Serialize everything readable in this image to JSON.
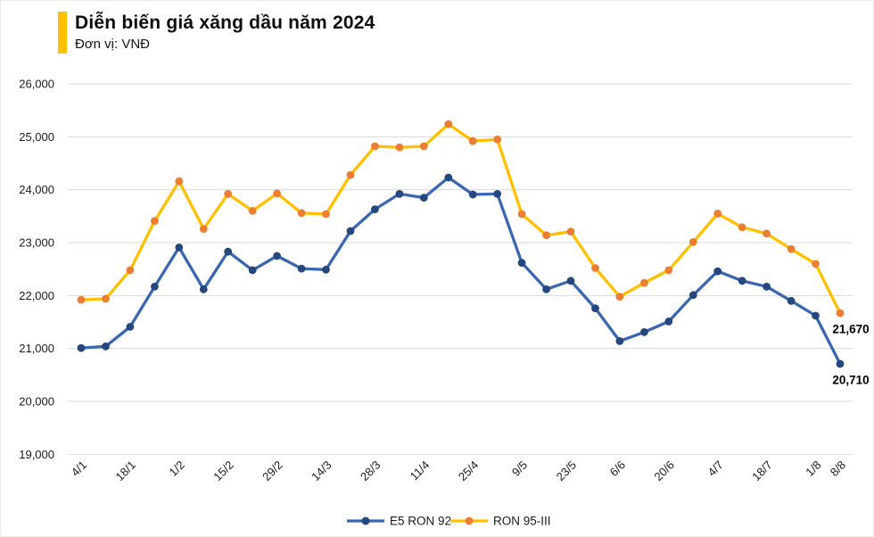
{
  "header": {
    "title": "Diễn biến giá xăng dầu năm 2024",
    "subtitle": "Đơn vị: VNĐ",
    "accent_color": "#FFC000"
  },
  "chart_data": {
    "type": "line",
    "title": "Diễn biến giá xăng dầu năm 2024",
    "unit": "VNĐ",
    "x": [
      "4/1",
      "11/1",
      "18/1",
      "25/1",
      "1/2",
      "8/2",
      "15/2",
      "22/2",
      "29/2",
      "7/3",
      "14/3",
      "21/3",
      "28/3",
      "4/4",
      "11/4",
      "17/4",
      "25/4",
      "2/5",
      "9/5",
      "16/5",
      "23/5",
      "30/5",
      "6/6",
      "13/6",
      "20/6",
      "27/6",
      "4/7",
      "11/7",
      "18/7",
      "25/7",
      "1/8",
      "8/8"
    ],
    "x_tick_labels": [
      "4/1",
      "",
      "18/1",
      "",
      "1/2",
      "",
      "15/2",
      "",
      "29/2",
      "",
      "14/3",
      "",
      "28/3",
      "",
      "11/4",
      "",
      "25/4",
      "",
      "9/5",
      "",
      "23/5",
      "",
      "6/6",
      "",
      "20/6",
      "",
      "4/7",
      "",
      "18/7",
      "",
      "1/8",
      "8/8"
    ],
    "y_axis": {
      "min": 19000,
      "max": 26000,
      "step": 1000
    },
    "grid": true,
    "legend_position": "bottom",
    "colors": {
      "grid": "#D9D9D9",
      "axis_text": "#1a1a1a",
      "label_text": "#000000"
    },
    "series": [
      {
        "name": "E5 RON 92",
        "line_color": "#3A67B1",
        "marker_color": "#24477E",
        "end_label": "20,710",
        "values": [
          21010,
          21040,
          21410,
          22170,
          22910,
          22120,
          22830,
          22480,
          22750,
          22510,
          22490,
          23220,
          23630,
          23920,
          23850,
          24230,
          23910,
          23920,
          22620,
          22120,
          22280,
          21760,
          21140,
          21310,
          21510,
          22010,
          22460,
          22280,
          22170,
          21900,
          21620,
          20710
        ]
      },
      {
        "name": "RON 95-III",
        "line_color": "#FFC000",
        "marker_color": "#ED7D31",
        "end_label": "21,670",
        "values": [
          21920,
          21940,
          22480,
          23410,
          24160,
          23260,
          23920,
          23600,
          23930,
          23560,
          23540,
          24280,
          24820,
          24800,
          24820,
          25240,
          24920,
          24950,
          23540,
          23140,
          23210,
          22520,
          21980,
          22240,
          22480,
          23010,
          23550,
          23290,
          23170,
          22880,
          22600,
          21670
        ]
      }
    ]
  }
}
